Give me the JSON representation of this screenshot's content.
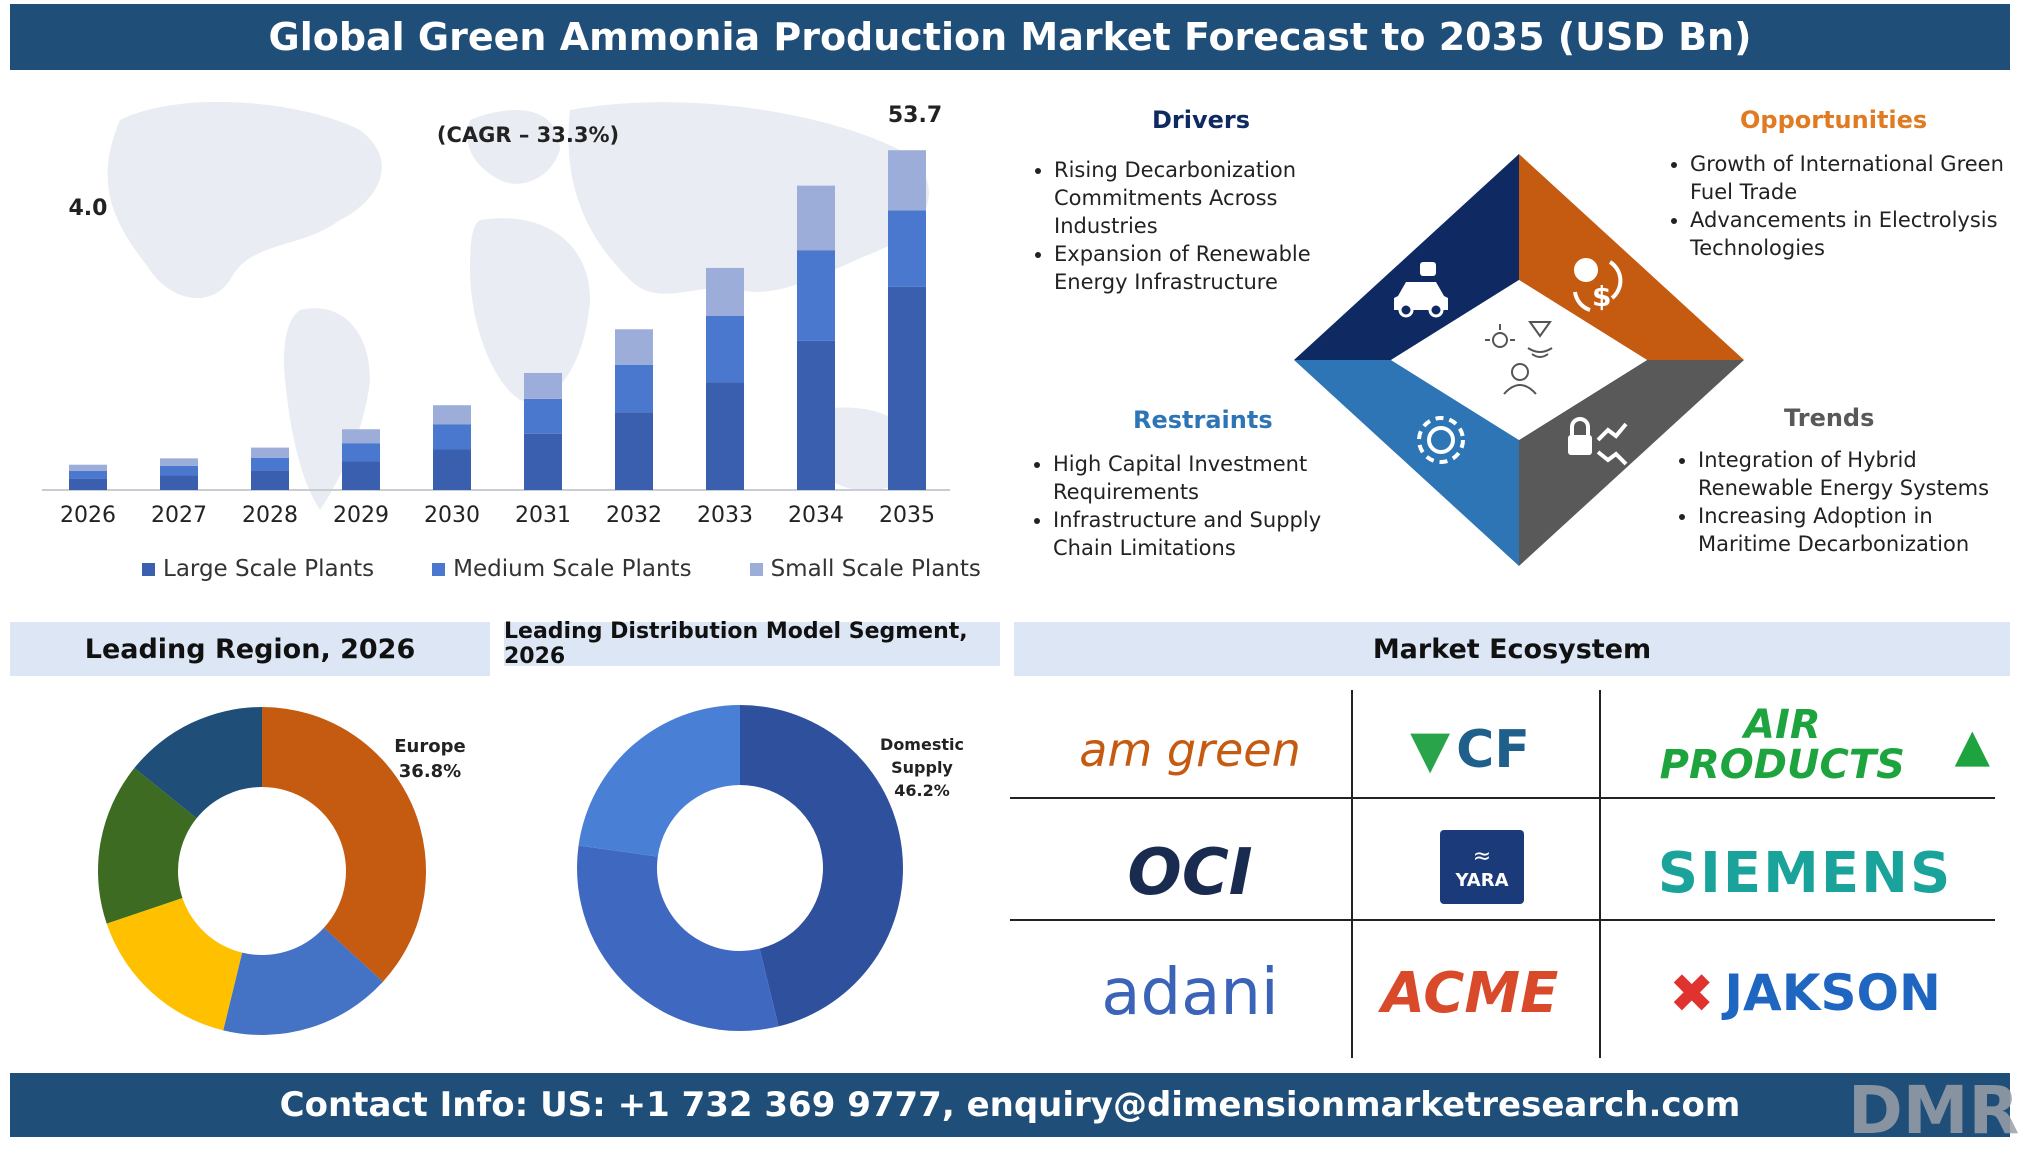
{
  "title": "Global Green Ammonia Production Market Forecast to 2035 (USD Bn)",
  "footer": "Contact Info: US: +1 732 369 9777, enquiry@dimensionmarketresearch.com",
  "colors": {
    "banner": "#1f4e79",
    "large": "#3a5fae",
    "medium": "#4a78cf",
    "small": "#9dadd9",
    "europe": "#c55a11",
    "drivers": "#0f2a63",
    "opportunities": "#c55a11",
    "restraints": "#2e75b6",
    "trends": "#595959"
  },
  "chart_data": [
    {
      "type": "bar",
      "stacked": true,
      "categories": [
        "2026",
        "2027",
        "2028",
        "2029",
        "2030",
        "2031",
        "2032",
        "2033",
        "2034",
        "2035"
      ],
      "series": [
        {
          "name": "Large Scale Plants",
          "values": [
            1.8,
            2.3,
            3.1,
            4.5,
            6.4,
            8.9,
            12.3,
            17.0,
            23.6,
            32.1
          ]
        },
        {
          "name": "Medium Scale Plants",
          "values": [
            1.2,
            1.5,
            2.0,
            2.9,
            4.0,
            5.5,
            7.5,
            10.5,
            14.3,
            12.1
          ]
        },
        {
          "name": "Small Scale Plants",
          "values": [
            1.0,
            1.2,
            1.6,
            2.2,
            3.0,
            4.1,
            5.6,
            7.6,
            10.2,
            9.5
          ]
        }
      ],
      "annotations": {
        "first": "4.0",
        "last": "53.7",
        "cagr": "(CAGR – 33.3%)"
      },
      "legend": "bottom"
    },
    {
      "type": "pie",
      "title": "Leading Region, 2026",
      "slices": [
        {
          "value": 36.8,
          "color": "#c55a11"
        },
        {
          "value": 17.0,
          "color": "#4472c4"
        },
        {
          "value": 16.0,
          "color": "#ffc000"
        },
        {
          "value": 16.0,
          "color": "#3d6b22"
        },
        {
          "value": 14.2,
          "color": "#1f4e79"
        }
      ],
      "label_name": "Europe",
      "label_value": "36.8%"
    },
    {
      "type": "pie",
      "title": "Leading Distribution Model Segment, 2026",
      "slices": [
        {
          "value": 46.2,
          "color": "#2f509c"
        },
        {
          "value": 31.0,
          "color": "#3f69c1"
        },
        {
          "value": 22.8,
          "color": "#4a7fd6"
        }
      ],
      "label_name_1": "Domestic",
      "label_name_2": "Supply",
      "label_value": "46.2%"
    }
  ],
  "legend": {
    "large": "Large Scale Plants",
    "medium": "Medium Scale Plants",
    "small": "Small Scale Plants"
  },
  "drivers": {
    "title": "Drivers",
    "items": [
      "Rising Decarbonization Commitments Across Industries",
      "Expansion of Renewable Energy Infrastructure"
    ]
  },
  "opportunities": {
    "title": "Opportunities",
    "items": [
      "Growth of International Green Fuel Trade",
      "Advancements in Electrolysis Technologies"
    ]
  },
  "restraints": {
    "title": "Restraints",
    "items": [
      "High Capital Investment Requirements",
      "Infrastructure and Supply Chain Limitations"
    ]
  },
  "trends": {
    "title": "Trends",
    "items": [
      "Integration of Hybrid Renewable Energy Systems",
      "Increasing Adoption in Maritime Decarbonization"
    ]
  },
  "ecosystem": {
    "title": "Market Ecosystem",
    "logos": [
      "am green",
      "CF",
      "AIR PRODUCTS",
      "OCI",
      "YARA",
      "SIEMENS",
      "adani",
      "ACME",
      "JAKSON"
    ]
  },
  "brand": "DMR"
}
